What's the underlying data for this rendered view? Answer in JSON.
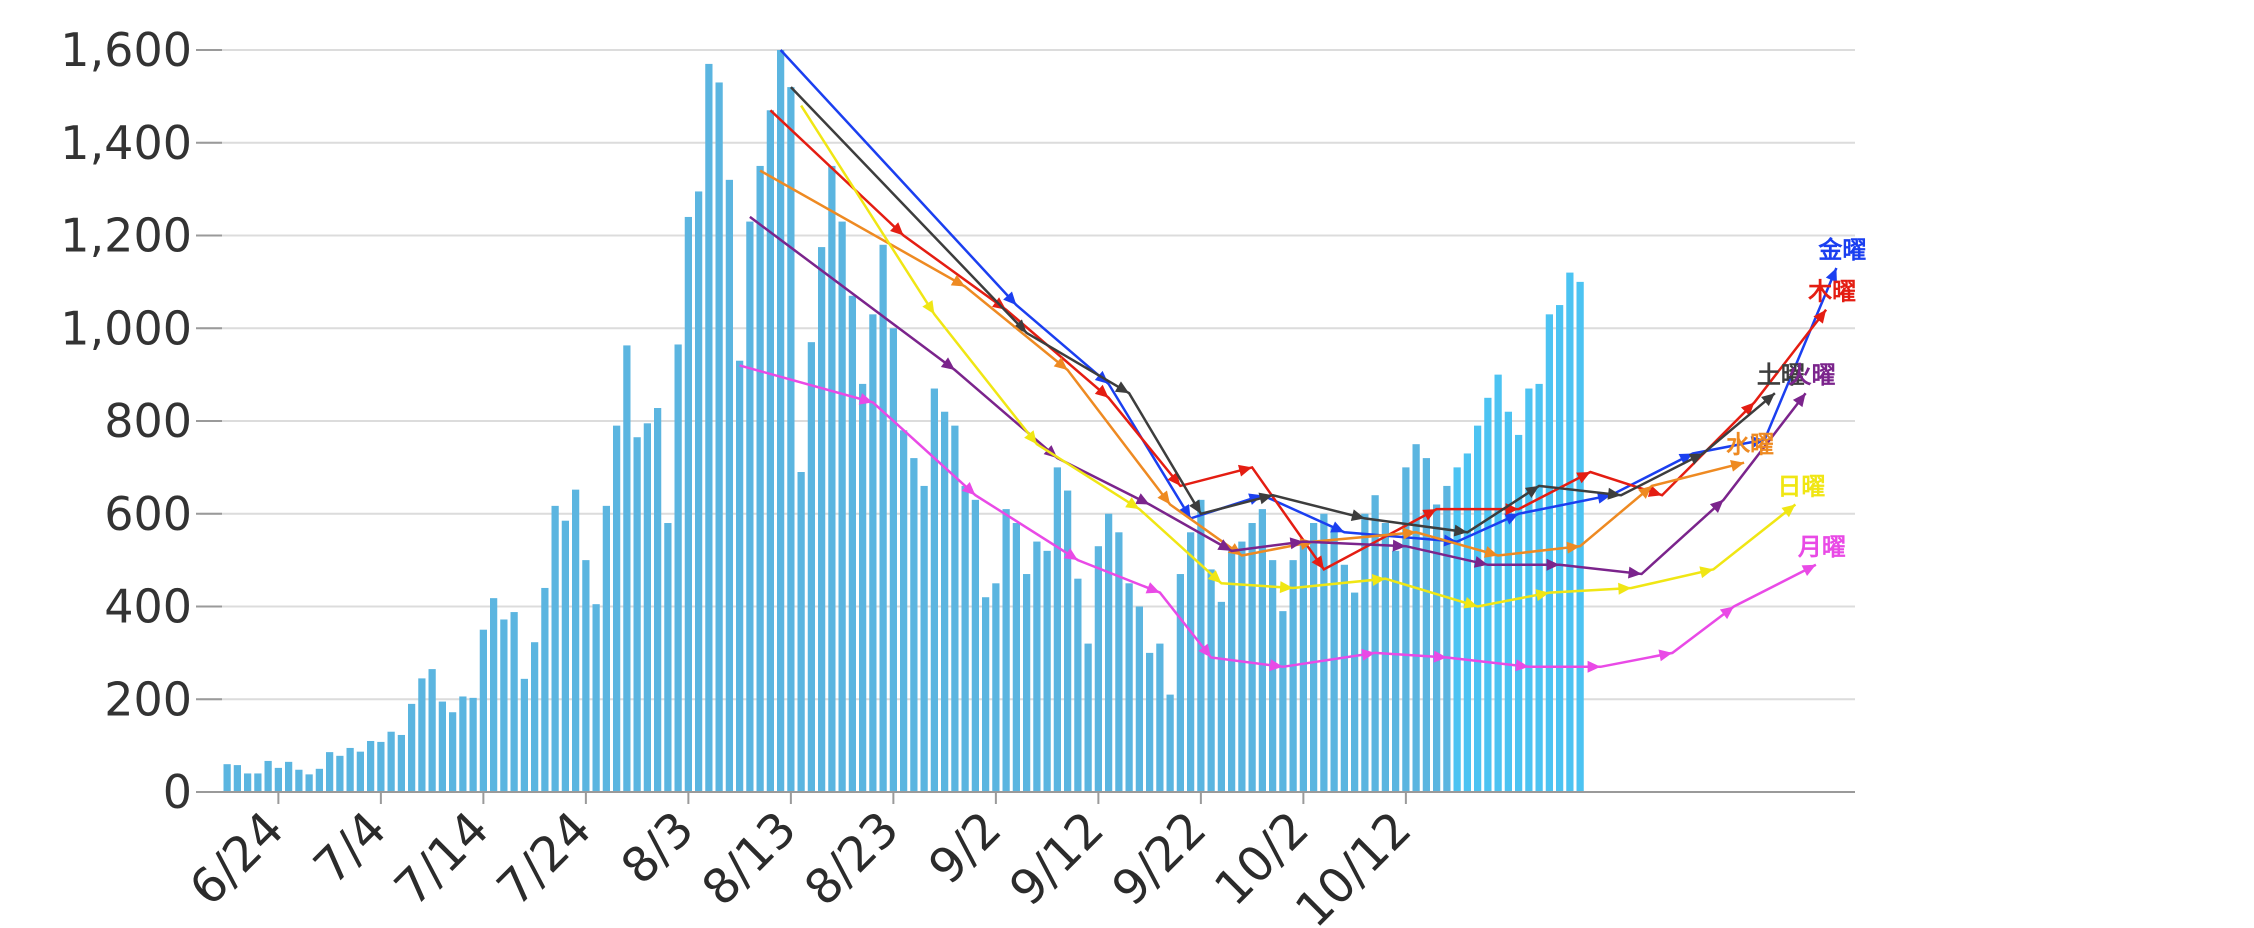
{
  "chart_data": {
    "type": "bar",
    "title": "",
    "xlabel": "",
    "ylabel": "",
    "ylim": [
      0,
      1600
    ],
    "yticks": [
      0,
      200,
      400,
      600,
      800,
      1000,
      1200,
      1400,
      1600
    ],
    "ytick_labels": [
      "0",
      "200",
      "400",
      "600",
      "800",
      "1,000",
      "1,200",
      "1,400",
      "1,600"
    ],
    "grid": true,
    "start_date": "6/19",
    "xtick_labels": [
      "6/24",
      "7/4",
      "7/14",
      "7/24",
      "8/3",
      "8/13",
      "8/23",
      "9/2",
      "9/12",
      "9/22",
      "10/2",
      "10/12"
    ],
    "bar_color": "#5bb5e0",
    "bar_color_projected": "#4cc3f2",
    "projected_from_index": 120,
    "values": [
      60,
      58,
      40,
      40,
      67,
      52,
      65,
      48,
      38,
      50,
      86,
      78,
      95,
      87,
      110,
      108,
      130,
      123,
      190,
      245,
      265,
      195,
      172,
      206,
      203,
      350,
      418,
      372,
      388,
      244,
      323,
      440,
      617,
      585,
      652,
      500,
      405,
      617,
      790,
      963,
      765,
      795,
      828,
      580,
      965,
      1240,
      1295,
      1570,
      1530,
      1320,
      930,
      1230,
      1350,
      1470,
      1600,
      1520,
      690,
      970,
      1175,
      1350,
      1230,
      1070,
      880,
      1030,
      1180,
      1000,
      780,
      720,
      660,
      870,
      820,
      790,
      660,
      630,
      420,
      450,
      610,
      580,
      470,
      540,
      520,
      700,
      650,
      460,
      320,
      530,
      600,
      560,
      450,
      400,
      300,
      320,
      210,
      470,
      560,
      630,
      480,
      410,
      520,
      540,
      580,
      610,
      500,
      390,
      500,
      540,
      580,
      600,
      570,
      490,
      430,
      600,
      640,
      580,
      520,
      700,
      750,
      720,
      620,
      660,
      700,
      730,
      790,
      850,
      900,
      820,
      770,
      870,
      880,
      1030,
      1050,
      1120,
      1100
    ],
    "series": [
      {
        "name": "金曜",
        "color": "#1b3ff0",
        "points": [
          [
            54,
            1600
          ],
          [
            77,
            1050
          ],
          [
            86,
            880
          ],
          [
            94,
            590
          ],
          [
            101,
            640
          ],
          [
            109,
            560
          ],
          [
            120,
            540
          ],
          [
            126,
            600
          ],
          [
            135,
            640
          ],
          [
            143,
            730
          ],
          [
            150,
            760
          ],
          [
            157,
            1130
          ]
        ]
      },
      {
        "name": "木曜",
        "color": "#e41d12",
        "points": [
          [
            53,
            1470
          ],
          [
            66,
            1200
          ],
          [
            76,
            1040
          ],
          [
            86,
            850
          ],
          [
            93,
            660
          ],
          [
            100,
            700
          ],
          [
            107,
            480
          ],
          [
            118,
            610
          ],
          [
            126,
            610
          ],
          [
            133,
            690
          ],
          [
            140,
            640
          ],
          [
            149,
            840
          ],
          [
            156,
            1040
          ]
        ]
      },
      {
        "name": "土曜",
        "color": "#3d3d3d",
        "points": [
          [
            55,
            1520
          ],
          [
            78,
            990
          ],
          [
            88,
            860
          ],
          [
            95,
            600
          ],
          [
            102,
            640
          ],
          [
            111,
            590
          ],
          [
            121,
            560
          ],
          [
            128,
            660
          ],
          [
            136,
            640
          ],
          [
            144,
            730
          ],
          [
            151,
            860
          ]
        ]
      },
      {
        "name": "水曜",
        "color": "#ee8a22",
        "points": [
          [
            52,
            1340
          ],
          [
            72,
            1090
          ],
          [
            82,
            910
          ],
          [
            92,
            620
          ],
          [
            99,
            510
          ],
          [
            106,
            540
          ],
          [
            116,
            560
          ],
          [
            124,
            510
          ],
          [
            132,
            530
          ],
          [
            139,
            660
          ],
          [
            148,
            710
          ]
        ]
      },
      {
        "name": "火曜",
        "color": "#7b248c",
        "points": [
          [
            51,
            1240
          ],
          [
            71,
            910
          ],
          [
            81,
            720
          ],
          [
            90,
            620
          ],
          [
            98,
            520
          ],
          [
            105,
            540
          ],
          [
            115,
            530
          ],
          [
            123,
            490
          ],
          [
            130,
            490
          ],
          [
            138,
            470
          ],
          [
            146,
            630
          ],
          [
            154,
            860
          ]
        ]
      },
      {
        "name": "日曜",
        "color": "#f0e614",
        "points": [
          [
            56,
            1480
          ],
          [
            69,
            1030
          ],
          [
            79,
            750
          ],
          [
            89,
            610
          ],
          [
            97,
            450
          ],
          [
            104,
            440
          ],
          [
            113,
            460
          ],
          [
            122,
            400
          ],
          [
            129,
            430
          ],
          [
            137,
            440
          ],
          [
            145,
            480
          ],
          [
            153,
            620
          ]
        ]
      },
      {
        "name": "月曜",
        "color": "#e94ae6",
        "points": [
          [
            50,
            920
          ],
          [
            63,
            840
          ],
          [
            73,
            640
          ],
          [
            83,
            500
          ],
          [
            91,
            430
          ],
          [
            96,
            290
          ],
          [
            103,
            270
          ],
          [
            112,
            300
          ],
          [
            119,
            290
          ],
          [
            127,
            270
          ],
          [
            134,
            270
          ],
          [
            141,
            300
          ],
          [
            147,
            400
          ],
          [
            155,
            490
          ]
        ]
      }
    ],
    "series_label_positions": "right-end"
  }
}
